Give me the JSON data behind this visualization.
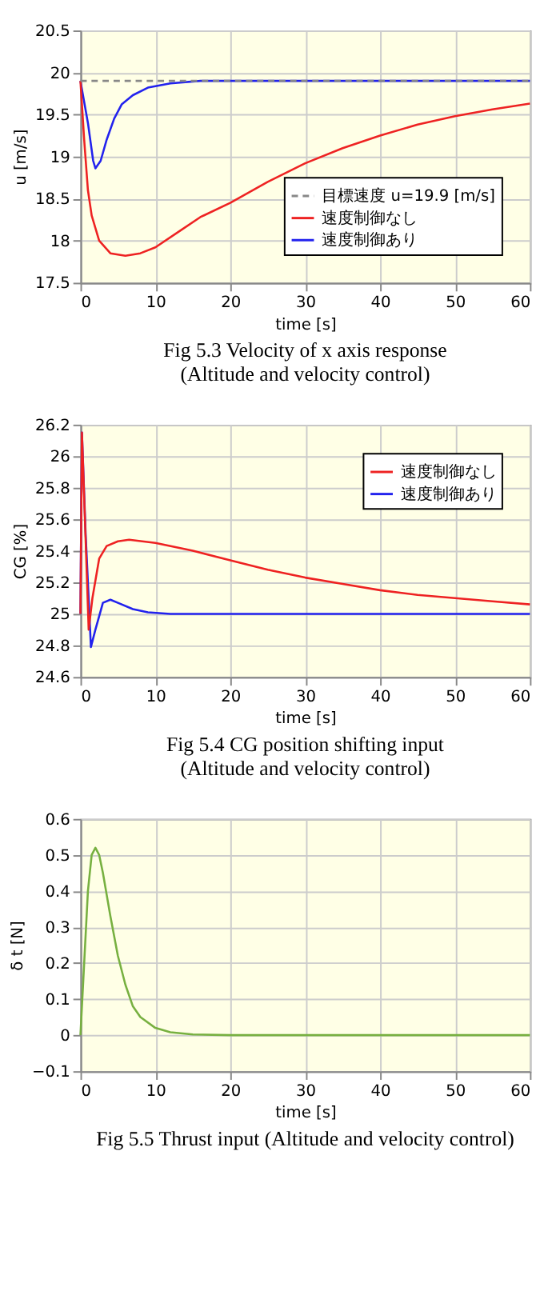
{
  "chart_data": [
    {
      "type": "line",
      "xlabel": "time [s]",
      "ylabel": "u [m/s]",
      "xlim": [
        0,
        60
      ],
      "xticks": [
        0,
        10,
        20,
        30,
        40,
        50,
        60
      ],
      "ylim": [
        17.5,
        20.5
      ],
      "yticks": [
        17.5,
        18,
        18.5,
        19,
        19.5,
        20,
        20.5
      ],
      "grid": true,
      "legend": "bottom right",
      "line_style": "solid",
      "annotations": [
        "Fig 5.3    Velocity of  x  axis response",
        "(Altitude and velocity control)"
      ],
      "series": [
        {
          "name": "目標速度 u=19.9 [m/s]",
          "color": "#888888",
          "line_style": "dashed",
          "x": [
            0,
            60
          ],
          "values": [
            19.9,
            19.9
          ]
        },
        {
          "name": "速度制御なし",
          "color": "#ee2222",
          "x": [
            0,
            0.5,
            1,
            1.5,
            2.5,
            4,
            6,
            8,
            10,
            13,
            16,
            20,
            25,
            30,
            35,
            40,
            45,
            50,
            55,
            60
          ],
          "values": [
            19.9,
            19.2,
            18.6,
            18.3,
            18.0,
            17.85,
            17.82,
            17.85,
            17.92,
            18.1,
            18.28,
            18.45,
            18.7,
            18.92,
            19.1,
            19.25,
            19.38,
            19.48,
            19.56,
            19.63
          ]
        },
        {
          "name": "速度制御あり",
          "color": "#2222ee",
          "x": [
            0,
            1,
            1.7,
            2,
            2.7,
            3.5,
            4.5,
            5.5,
            7,
            9,
            12,
            16,
            60
          ],
          "values": [
            19.9,
            19.4,
            18.95,
            18.86,
            18.95,
            19.2,
            19.45,
            19.62,
            19.73,
            19.82,
            19.87,
            19.9,
            19.9
          ]
        }
      ]
    },
    {
      "type": "line",
      "xlabel": "time [s]",
      "ylabel": "CG [%]",
      "xlim": [
        0,
        60
      ],
      "xticks": [
        0,
        10,
        20,
        30,
        40,
        50,
        60
      ],
      "ylim": [
        24.6,
        26.2
      ],
      "yticks": [
        24.6,
        24.8,
        25,
        25.2,
        25.4,
        25.6,
        25.8,
        26,
        26.2
      ],
      "grid": true,
      "legend": "top right",
      "line_style": "solid",
      "annotations": [
        "Fig 5.4    CG position shifting input",
        "(Altitude and velocity control)"
      ],
      "series": [
        {
          "name": "速度制御なし",
          "color": "#ee2222",
          "x": [
            0,
            0.2,
            0.6,
            1.1,
            1.6,
            2.5,
            3.5,
            5,
            6.5,
            10,
            15,
            20,
            25,
            30,
            35,
            40,
            45,
            50,
            55,
            60
          ],
          "values": [
            25,
            26.15,
            25.6,
            24.9,
            25.1,
            25.35,
            25.43,
            25.46,
            25.47,
            25.45,
            25.4,
            25.34,
            25.28,
            25.23,
            25.19,
            25.15,
            25.12,
            25.1,
            25.08,
            25.06
          ]
        },
        {
          "name": "速度制御あり",
          "color": "#2222ee",
          "x": [
            0,
            0.2,
            0.7,
            1.4,
            2,
            3,
            4,
            5,
            7,
            9,
            12,
            60
          ],
          "values": [
            25,
            26.15,
            25.5,
            24.79,
            24.9,
            25.07,
            25.09,
            25.07,
            25.03,
            25.01,
            25.0,
            25.0
          ]
        }
      ]
    },
    {
      "type": "line",
      "xlabel": "time [s]",
      "ylabel": "δ t [N]",
      "xlim": [
        0,
        60
      ],
      "xticks": [
        0,
        10,
        20,
        30,
        40,
        50,
        60
      ],
      "ylim": [
        -0.1,
        0.6
      ],
      "yticks": [
        -0.1,
        0,
        0.1,
        0.2,
        0.3,
        0.4,
        0.5,
        0.6
      ],
      "grid": true,
      "line_style": "solid",
      "annotations": [
        "Fig 5.5    Thrust input (Altitude and velocity control)"
      ],
      "series": [
        {
          "color": "#77b040",
          "x": [
            0,
            0.5,
            1,
            1.5,
            2,
            2.5,
            3,
            4,
            5,
            6,
            7,
            8,
            10,
            12,
            15,
            20,
            60
          ],
          "values": [
            0,
            0.2,
            0.4,
            0.5,
            0.52,
            0.5,
            0.45,
            0.33,
            0.22,
            0.14,
            0.08,
            0.05,
            0.02,
            0.008,
            0.002,
            0,
            0
          ]
        }
      ]
    }
  ]
}
